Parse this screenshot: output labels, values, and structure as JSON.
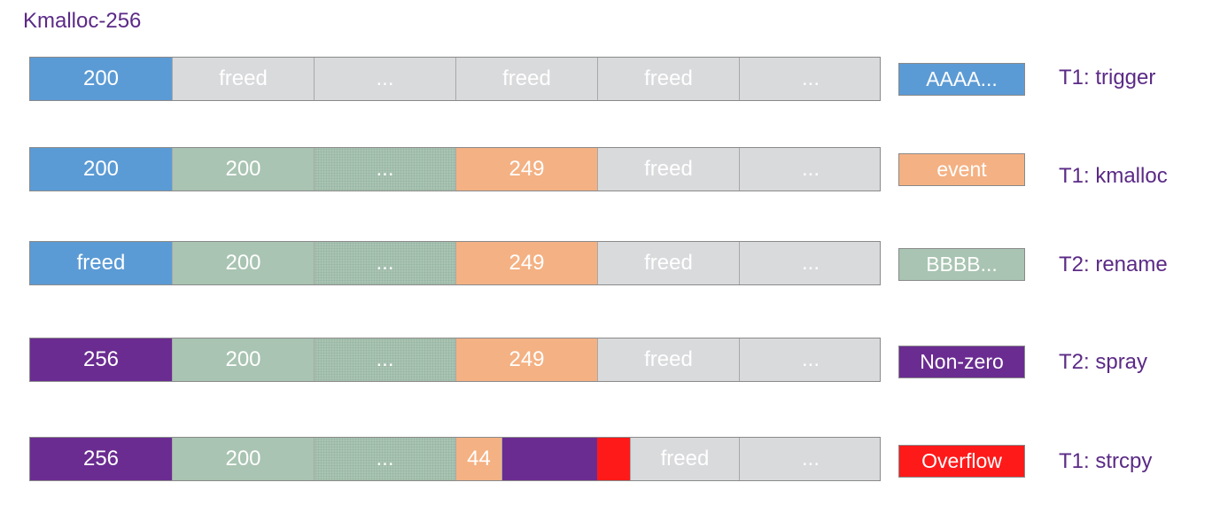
{
  "title": "Kmalloc-256",
  "rows": [
    {
      "cells": [
        "200",
        "freed",
        "...",
        "freed",
        "freed",
        "..."
      ],
      "legend": "AAAA...",
      "step": "T1: trigger"
    },
    {
      "cells": [
        "200",
        "200",
        "...",
        "249",
        "freed",
        "..."
      ],
      "legend": "event",
      "step": "T1: kmalloc"
    },
    {
      "cells": [
        "freed",
        "200",
        "...",
        "249",
        "freed",
        "..."
      ],
      "legend": "BBBB...",
      "step": "T2: rename"
    },
    {
      "cells": [
        "256",
        "200",
        "...",
        "249",
        "freed",
        "..."
      ],
      "legend": "Non-zero",
      "step": "T2: spray"
    },
    {
      "cells": [
        "256",
        "200",
        "...",
        "44",
        "",
        "",
        "freed",
        "..."
      ],
      "legend": "Overflow",
      "step": "T1: strcpy"
    }
  ],
  "colors": {
    "blue": "#5b9bd5",
    "gray": "#d9dadc",
    "green": "#a9c4b2",
    "orange": "#f4b183",
    "purple": "#6a2c91",
    "red": "#ff1a1a",
    "title": "#5b2a86"
  }
}
